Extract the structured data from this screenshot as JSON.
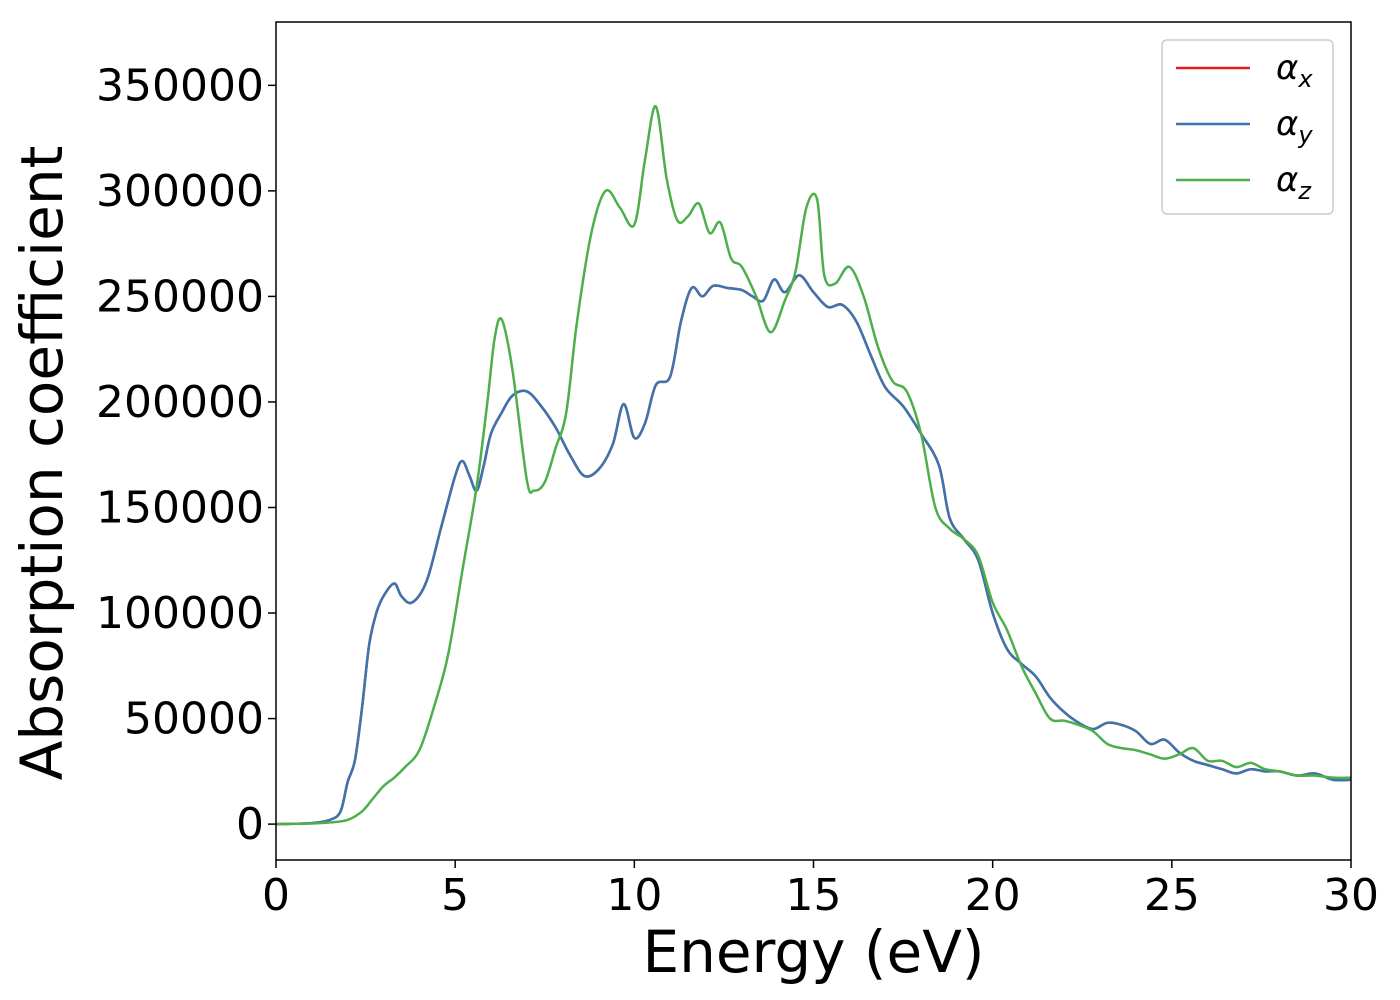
{
  "chart_data": {
    "type": "line",
    "title": "",
    "xlabel": "Energy (eV)",
    "ylabel": "Absorption coefficient",
    "xlim": [
      0,
      30
    ],
    "ylim": [
      -17000,
      380000
    ],
    "x_ticks": [
      0,
      5,
      10,
      15,
      20,
      25,
      30
    ],
    "x_tick_labels": [
      "0",
      "5",
      "10",
      "15",
      "20",
      "25",
      "30"
    ],
    "y_ticks": [
      0,
      50000,
      100000,
      150000,
      200000,
      250000,
      300000,
      350000
    ],
    "y_tick_labels": [
      "0",
      "50000",
      "100000",
      "150000",
      "200000",
      "250000",
      "300000",
      "350000"
    ],
    "grid": false,
    "legend_position": "top-right",
    "series": [
      {
        "name": "α_x",
        "symbol": "α",
        "subscript": "x",
        "color": "#e41a1c",
        "x": [
          0,
          1,
          1.5,
          1.8,
          2.0,
          2.2,
          2.4,
          2.6,
          2.8,
          3.0,
          3.3,
          3.5,
          3.8,
          4.2,
          4.6,
          5.0,
          5.2,
          5.4,
          5.6,
          5.8,
          6.0,
          6.3,
          6.6,
          7.0,
          7.4,
          7.8,
          8.2,
          8.6,
          9.0,
          9.4,
          9.7,
          10.0,
          10.3,
          10.6,
          11.0,
          11.3,
          11.6,
          11.9,
          12.2,
          12.6,
          13.0,
          13.3,
          13.6,
          13.9,
          14.2,
          14.6,
          15.0,
          15.4,
          15.8,
          16.2,
          16.6,
          17.0,
          17.5,
          18.0,
          18.5,
          18.8,
          19.2,
          19.6,
          20.0,
          20.4,
          20.8,
          21.2,
          21.6,
          22.0,
          22.4,
          22.8,
          23.2,
          23.6,
          24.0,
          24.4,
          24.8,
          25.2,
          25.6,
          26.0,
          26.4,
          26.8,
          27.2,
          27.6,
          28.0,
          28.5,
          29.0,
          29.5,
          30.0
        ],
        "y": [
          0,
          500,
          2000,
          6000,
          20000,
          30000,
          55000,
          85000,
          100000,
          108000,
          114000,
          108000,
          105000,
          115000,
          140000,
          165000,
          172000,
          165000,
          158000,
          170000,
          185000,
          195000,
          203000,
          205000,
          198000,
          188000,
          175000,
          165000,
          168000,
          180000,
          199000,
          183000,
          190000,
          208000,
          212000,
          238000,
          254000,
          250000,
          255000,
          254000,
          253000,
          250000,
          248000,
          258000,
          252000,
          260000,
          252000,
          245000,
          246000,
          238000,
          222000,
          207000,
          198000,
          185000,
          170000,
          145000,
          135000,
          125000,
          100000,
          83000,
          76000,
          70000,
          60000,
          53000,
          48000,
          45000,
          48000,
          47000,
          44000,
          38000,
          40000,
          34000,
          30000,
          28000,
          26000,
          24000,
          26000,
          25000,
          25000,
          23000,
          24000,
          21000,
          21000
        ]
      },
      {
        "name": "α_y",
        "symbol": "α",
        "subscript": "y",
        "color": "#3a75b0",
        "x": [
          0,
          1,
          1.5,
          1.8,
          2.0,
          2.2,
          2.4,
          2.6,
          2.8,
          3.0,
          3.3,
          3.5,
          3.8,
          4.2,
          4.6,
          5.0,
          5.2,
          5.4,
          5.6,
          5.8,
          6.0,
          6.3,
          6.6,
          7.0,
          7.4,
          7.8,
          8.2,
          8.6,
          9.0,
          9.4,
          9.7,
          10.0,
          10.3,
          10.6,
          11.0,
          11.3,
          11.6,
          11.9,
          12.2,
          12.6,
          13.0,
          13.3,
          13.6,
          13.9,
          14.2,
          14.6,
          15.0,
          15.4,
          15.8,
          16.2,
          16.6,
          17.0,
          17.5,
          18.0,
          18.5,
          18.8,
          19.2,
          19.6,
          20.0,
          20.4,
          20.8,
          21.2,
          21.6,
          22.0,
          22.4,
          22.8,
          23.2,
          23.6,
          24.0,
          24.4,
          24.8,
          25.2,
          25.6,
          26.0,
          26.4,
          26.8,
          27.2,
          27.6,
          28.0,
          28.5,
          29.0,
          29.5,
          30.0
        ],
        "y": [
          0,
          500,
          2000,
          6000,
          20000,
          30000,
          55000,
          85000,
          100000,
          108000,
          114000,
          108000,
          105000,
          115000,
          140000,
          165000,
          172000,
          165000,
          158000,
          170000,
          185000,
          195000,
          203000,
          205000,
          198000,
          188000,
          175000,
          165000,
          168000,
          180000,
          199000,
          183000,
          190000,
          208000,
          212000,
          238000,
          254000,
          250000,
          255000,
          254000,
          253000,
          250000,
          248000,
          258000,
          252000,
          260000,
          252000,
          245000,
          246000,
          238000,
          222000,
          207000,
          198000,
          185000,
          170000,
          145000,
          135000,
          125000,
          100000,
          83000,
          76000,
          70000,
          60000,
          53000,
          48000,
          45000,
          48000,
          47000,
          44000,
          38000,
          40000,
          34000,
          30000,
          28000,
          26000,
          24000,
          26000,
          25000,
          25000,
          23000,
          24000,
          21000,
          21000
        ]
      },
      {
        "name": "α_z",
        "symbol": "α",
        "subscript": "z",
        "color": "#4daf4a",
        "x": [
          0,
          1,
          1.5,
          2.0,
          2.4,
          2.7,
          3.0,
          3.3,
          3.6,
          4.0,
          4.4,
          4.8,
          5.2,
          5.6,
          5.9,
          6.1,
          6.3,
          6.6,
          7.0,
          7.2,
          7.5,
          7.8,
          8.1,
          8.4,
          8.8,
          9.2,
          9.6,
          10.0,
          10.3,
          10.6,
          10.9,
          11.2,
          11.5,
          11.8,
          12.1,
          12.4,
          12.7,
          13.0,
          13.4,
          13.8,
          14.2,
          14.5,
          14.8,
          15.1,
          15.3,
          15.6,
          16.0,
          16.4,
          16.8,
          17.2,
          17.6,
          18.0,
          18.4,
          18.8,
          19.2,
          19.6,
          20.0,
          20.4,
          20.8,
          21.2,
          21.6,
          22.0,
          22.4,
          22.8,
          23.2,
          23.6,
          24.0,
          24.4,
          24.8,
          25.2,
          25.6,
          26.0,
          26.4,
          26.8,
          27.2,
          27.6,
          28.0,
          28.5,
          29.0,
          29.5,
          30.0
        ],
        "y": [
          0,
          300,
          800,
          2000,
          6000,
          12000,
          18000,
          22000,
          27000,
          35000,
          55000,
          80000,
          120000,
          160000,
          200000,
          230000,
          239000,
          215000,
          163000,
          158000,
          162000,
          178000,
          195000,
          238000,
          280000,
          300000,
          292000,
          284000,
          315000,
          340000,
          306000,
          286000,
          288000,
          294000,
          280000,
          285000,
          268000,
          264000,
          250000,
          233000,
          248000,
          262000,
          292000,
          296000,
          260000,
          256000,
          264000,
          250000,
          226000,
          210000,
          205000,
          185000,
          150000,
          140000,
          135000,
          127000,
          105000,
          92000,
          75000,
          62000,
          50000,
          49000,
          47000,
          44000,
          38000,
          36000,
          35000,
          33000,
          31000,
          33000,
          36000,
          30000,
          30000,
          27000,
          29000,
          26000,
          25000,
          23000,
          23000,
          22000,
          22000
        ]
      }
    ]
  }
}
